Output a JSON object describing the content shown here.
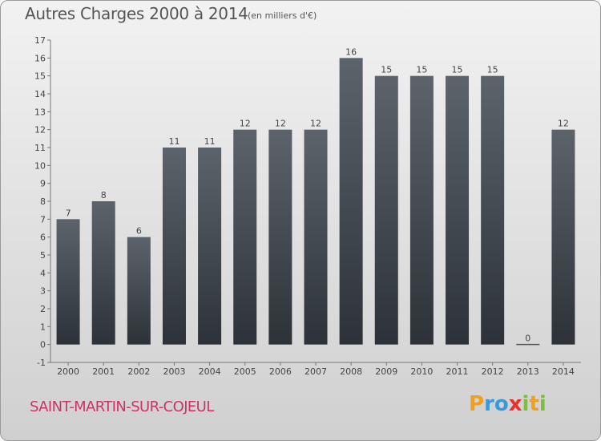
{
  "chart_data": {
    "type": "bar",
    "title": "Autres Charges 2000 à 2014",
    "subtitle": "(en milliers d'€)",
    "categories": [
      "2000",
      "2001",
      "2002",
      "2003",
      "2004",
      "2005",
      "2006",
      "2007",
      "2008",
      "2009",
      "2010",
      "2011",
      "2012",
      "2013",
      "2014"
    ],
    "values": [
      7,
      8,
      6,
      11,
      11,
      12,
      12,
      12,
      16,
      15,
      15,
      15,
      15,
      0,
      12
    ],
    "data_labels": [
      "7",
      "8",
      "6",
      "11",
      "11",
      "12",
      "12",
      "12",
      "16",
      "15",
      "15",
      "15",
      "15",
      "0",
      "12"
    ],
    "ylim": [
      -1,
      17
    ],
    "yticks": [
      -1,
      0,
      1,
      2,
      3,
      4,
      5,
      6,
      7,
      8,
      9,
      10,
      11,
      12,
      13,
      14,
      15,
      16,
      17
    ],
    "grid": false,
    "bar_color": "#4a5058"
  },
  "commune": "SAINT-MARTIN-SUR-COJEUL",
  "logo": {
    "letters": [
      "P",
      "r",
      "o",
      "x",
      "i",
      "t",
      "i"
    ],
    "colors": [
      "#f0a020",
      "#3a9ad9",
      "#3a9ad9",
      "#e8302a",
      "#7bbf3a",
      "#f0a020",
      "#7bbf3a"
    ]
  }
}
